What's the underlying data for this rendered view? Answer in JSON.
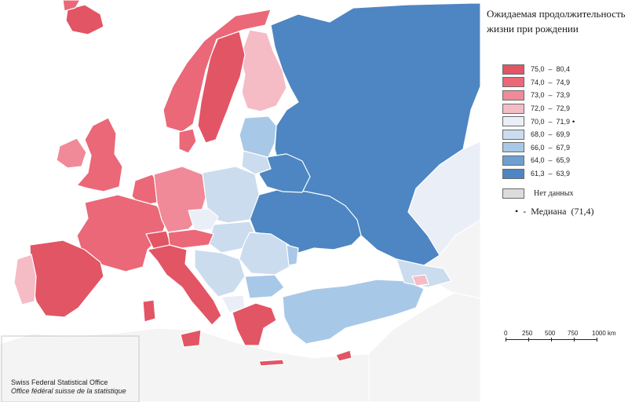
{
  "colors": {
    "sea": "#ffffff",
    "outside": "#f4f4f4",
    "border": "#ffffff",
    "c1": "#e25565",
    "c2": "#ea6878",
    "c3": "#f08a98",
    "c4": "#f5bcc6",
    "c5": "#eaeef7",
    "c6": "#cbdcef",
    "c7": "#a8c8e8",
    "c8": "#6f9fd0",
    "c9": "#4d86c2",
    "nodata": "#dcdcdc"
  },
  "legend": {
    "title_line1": "Ожидаемая продолжительность",
    "title_line2": "жизни при рождении",
    "classes": [
      {
        "range": "75,0  –  80,4",
        "color": "#e25565",
        "median": ""
      },
      {
        "range": "74,0  –  74,9",
        "color": "#ea6878",
        "median": ""
      },
      {
        "range": "73,0  –  73,9",
        "color": "#f08a98",
        "median": ""
      },
      {
        "range": "72,0  –  72,9",
        "color": "#f5bcc6",
        "median": ""
      },
      {
        "range": "70,0  –  71,9",
        "color": "#eaeef7",
        "median": "•"
      },
      {
        "range": "68,0  –  69,9",
        "color": "#cbdcef",
        "median": ""
      },
      {
        "range": "66,0  –  67,9",
        "color": "#a8c8e8",
        "median": ""
      },
      {
        "range": "64,0  –  65,9",
        "color": "#6f9fd0",
        "median": ""
      },
      {
        "range": "61,3  –  63,9",
        "color": "#4d86c2",
        "median": ""
      }
    ],
    "nodata_label": "Нет данных",
    "median_note": "•  -  Медиана  (71,4)"
  },
  "scale": {
    "labels": [
      "0",
      "250",
      "500",
      "750",
      "1000 km"
    ]
  },
  "credit": {
    "line1": "Swiss Federal Statistical Office",
    "line2": "Office fédéral suisse de la statistique"
  },
  "regions": [
    {
      "name": "Russia",
      "class": "c9"
    },
    {
      "name": "Ukraine",
      "class": "c9"
    },
    {
      "name": "Belarus",
      "class": "c9"
    },
    {
      "name": "Finland",
      "class": "c4"
    },
    {
      "name": "Sweden",
      "class": "c1"
    },
    {
      "name": "Norway",
      "class": "c2"
    },
    {
      "name": "Iceland",
      "class": "c1"
    },
    {
      "name": "UK",
      "class": "c2"
    },
    {
      "name": "Ireland",
      "class": "c3"
    },
    {
      "name": "France",
      "class": "c2"
    },
    {
      "name": "Spain",
      "class": "c1"
    },
    {
      "name": "Portugal",
      "class": "c4"
    },
    {
      "name": "Italy",
      "class": "c1"
    },
    {
      "name": "Germany",
      "class": "c3"
    },
    {
      "name": "Poland",
      "class": "c6"
    },
    {
      "name": "Greece",
      "class": "c1"
    },
    {
      "name": "Turkey",
      "class": "c7"
    },
    {
      "name": "Romania",
      "class": "c6"
    }
  ]
}
